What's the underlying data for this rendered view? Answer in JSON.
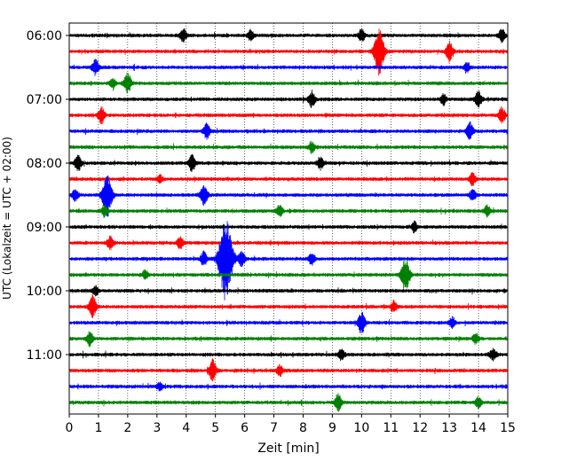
{
  "chart_data": {
    "type": "line",
    "title": "",
    "xlabel": "Zeit  [min]",
    "ylabel": "UTC (Lokalzeit = UTC + 02:00)",
    "xlim": [
      0,
      15
    ],
    "x_ticks": [
      0,
      1,
      2,
      3,
      4,
      5,
      6,
      7,
      8,
      9,
      10,
      11,
      12,
      13,
      14,
      15
    ],
    "x_tick_labels": [
      "0",
      "1",
      "2",
      "3",
      "4",
      "5",
      "6",
      "7",
      "8",
      "9",
      "10",
      "11",
      "12",
      "13",
      "14",
      "15"
    ],
    "y_tick_labels": [
      "06:00",
      "07:00",
      "08:00",
      "09:00",
      "10:00",
      "11:00"
    ],
    "grid": "vertical dotted lines at each minute",
    "color_cycle": [
      "#000000",
      "#ff0000",
      "#0000ff",
      "#008000"
    ],
    "traces": [
      {
        "start": "06:00",
        "color": "#000000",
        "events": [
          {
            "t": 3.9,
            "amp": 0.35
          },
          {
            "t": 6.2,
            "amp": 0.3
          },
          {
            "t": 10.0,
            "amp": 0.35
          },
          {
            "t": 14.8,
            "amp": 0.35
          }
        ]
      },
      {
        "start": "06:15",
        "color": "#ff0000",
        "events": [
          {
            "t": 10.6,
            "amp": 1.3
          },
          {
            "t": 13.0,
            "amp": 0.55
          }
        ]
      },
      {
        "start": "06:30",
        "color": "#0000ff",
        "events": [
          {
            "t": 0.9,
            "amp": 0.45
          },
          {
            "t": 13.6,
            "amp": 0.25
          }
        ]
      },
      {
        "start": "06:45",
        "color": "#008000",
        "events": [
          {
            "t": 2.0,
            "amp": 0.55
          },
          {
            "t": 1.5,
            "amp": 0.25
          }
        ]
      },
      {
        "start": "07:00",
        "color": "#000000",
        "events": [
          {
            "t": 8.3,
            "amp": 0.45
          },
          {
            "t": 14.0,
            "amp": 0.45
          },
          {
            "t": 12.8,
            "amp": 0.3
          }
        ]
      },
      {
        "start": "07:15",
        "color": "#ff0000",
        "events": [
          {
            "t": 1.1,
            "amp": 0.45
          },
          {
            "t": 14.8,
            "amp": 0.45
          }
        ]
      },
      {
        "start": "07:30",
        "color": "#0000ff",
        "events": [
          {
            "t": 4.7,
            "amp": 0.4
          },
          {
            "t": 13.7,
            "amp": 0.45
          }
        ]
      },
      {
        "start": "07:45",
        "color": "#008000",
        "events": [
          {
            "t": 8.3,
            "amp": 0.3
          }
        ]
      },
      {
        "start": "08:00",
        "color": "#000000",
        "events": [
          {
            "t": 0.3,
            "amp": 0.45
          },
          {
            "t": 4.2,
            "amp": 0.45
          },
          {
            "t": 8.6,
            "amp": 0.3
          }
        ]
      },
      {
        "start": "08:15",
        "color": "#ff0000",
        "events": [
          {
            "t": 13.8,
            "amp": 0.35
          },
          {
            "t": 3.1,
            "amp": 0.2
          }
        ]
      },
      {
        "start": "08:30",
        "color": "#0000ff",
        "events": [
          {
            "t": 1.3,
            "amp": 1.2
          },
          {
            "t": 4.6,
            "amp": 0.55
          },
          {
            "t": 0.2,
            "amp": 0.3
          },
          {
            "t": 13.8,
            "amp": 0.3
          }
        ]
      },
      {
        "start": "08:45",
        "color": "#008000",
        "events": [
          {
            "t": 1.2,
            "amp": 0.3
          },
          {
            "t": 7.2,
            "amp": 0.3
          },
          {
            "t": 14.3,
            "amp": 0.3
          }
        ]
      },
      {
        "start": "09:00",
        "color": "#000000",
        "events": [
          {
            "t": 11.8,
            "amp": 0.3
          }
        ]
      },
      {
        "start": "09:15",
        "color": "#ff0000",
        "events": [
          {
            "t": 1.4,
            "amp": 0.35
          },
          {
            "t": 3.8,
            "amp": 0.35
          }
        ]
      },
      {
        "start": "09:30",
        "color": "#0000ff",
        "events": [
          {
            "t": 5.35,
            "amp": 2.3
          },
          {
            "t": 4.6,
            "amp": 0.4
          },
          {
            "t": 5.9,
            "amp": 0.4
          },
          {
            "t": 8.3,
            "amp": 0.35
          }
        ]
      },
      {
        "start": "09:45",
        "color": "#008000",
        "events": [
          {
            "t": 11.5,
            "amp": 0.95
          },
          {
            "t": 2.6,
            "amp": 0.25
          }
        ]
      },
      {
        "start": "10:00",
        "color": "#000000",
        "events": [
          {
            "t": 0.9,
            "amp": 0.25
          }
        ]
      },
      {
        "start": "10:15",
        "color": "#ff0000",
        "events": [
          {
            "t": 0.8,
            "amp": 0.6
          },
          {
            "t": 11.1,
            "amp": 0.3
          }
        ]
      },
      {
        "start": "10:30",
        "color": "#0000ff",
        "events": [
          {
            "t": 10.0,
            "amp": 0.6
          },
          {
            "t": 13.1,
            "amp": 0.3
          }
        ]
      },
      {
        "start": "10:45",
        "color": "#008000",
        "events": [
          {
            "t": 0.7,
            "amp": 0.4
          },
          {
            "t": 13.9,
            "amp": 0.3
          }
        ]
      },
      {
        "start": "11:00",
        "color": "#000000",
        "events": [
          {
            "t": 9.3,
            "amp": 0.3
          },
          {
            "t": 14.5,
            "amp": 0.35
          }
        ]
      },
      {
        "start": "11:15",
        "color": "#ff0000",
        "events": [
          {
            "t": 4.9,
            "amp": 0.6
          },
          {
            "t": 7.2,
            "amp": 0.3
          }
        ]
      },
      {
        "start": "11:30",
        "color": "#0000ff",
        "events": [
          {
            "t": 3.1,
            "amp": 0.2
          }
        ]
      },
      {
        "start": "11:45",
        "color": "#008000",
        "events": [
          {
            "t": 9.2,
            "amp": 0.45
          },
          {
            "t": 14.0,
            "amp": 0.3
          }
        ]
      }
    ]
  }
}
